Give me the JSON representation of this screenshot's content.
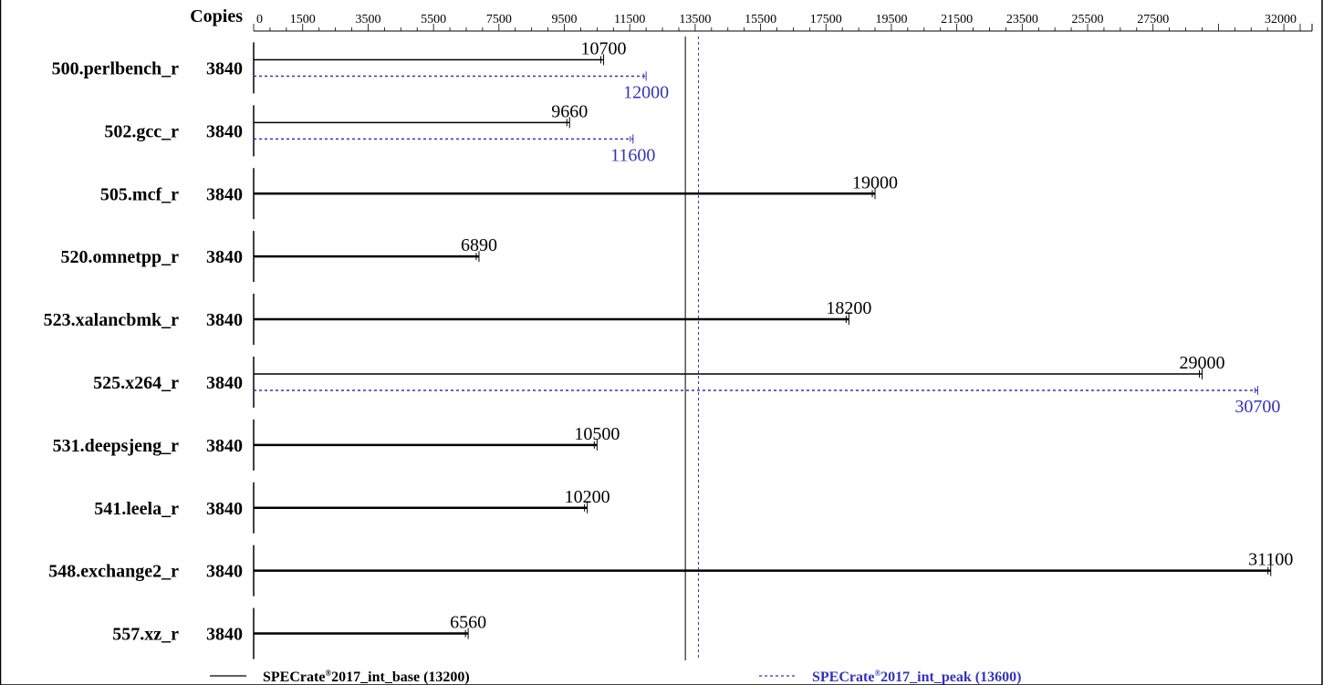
{
  "chart_data": {
    "type": "bar",
    "copies_header": "Copies",
    "colors": {
      "base": "#000000",
      "peak": "#3333bb"
    },
    "ticks": [
      0,
      1500,
      3500,
      5500,
      7500,
      9500,
      11500,
      13500,
      15500,
      17500,
      19500,
      21500,
      23500,
      25500,
      27500,
      32000
    ],
    "xlim": [
      0,
      32000
    ],
    "benchmarks": [
      {
        "name": "500.perlbench_r",
        "copies": "3840",
        "base": 10700,
        "base_label": "10700",
        "peak": 12000,
        "peak_label": "12000"
      },
      {
        "name": "502.gcc_r",
        "copies": "3840",
        "base": 9660,
        "base_label": "9660",
        "peak": 11600,
        "peak_label": "11600"
      },
      {
        "name": "505.mcf_r",
        "copies": "3840",
        "base": 19000,
        "base_label": "19000"
      },
      {
        "name": "520.omnetpp_r",
        "copies": "3840",
        "base": 6890,
        "base_label": "6890"
      },
      {
        "name": "523.xalancbmk_r",
        "copies": "3840",
        "base": 18200,
        "base_label": "18200"
      },
      {
        "name": "525.x264_r",
        "copies": "3840",
        "base": 29000,
        "base_label": "29000",
        "peak": 30700,
        "peak_label": "30700"
      },
      {
        "name": "531.deepsjeng_r",
        "copies": "3840",
        "base": 10500,
        "base_label": "10500"
      },
      {
        "name": "541.leela_r",
        "copies": "3840",
        "base": 10200,
        "base_label": "10200"
      },
      {
        "name": "548.exchange2_r",
        "copies": "3840",
        "base": 31100,
        "base_label": "31100"
      },
      {
        "name": "557.xz_r",
        "copies": "3840",
        "base": 6560,
        "base_label": "6560"
      }
    ],
    "summary": {
      "base_value": 13200,
      "peak_value": 13600,
      "base_prefix": "SPECrate",
      "base_suffix": "2017_int_base (13200)",
      "peak_prefix": "SPECrate",
      "peak_suffix": "2017_int_peak (13600)",
      "reg_mark": "®"
    }
  }
}
